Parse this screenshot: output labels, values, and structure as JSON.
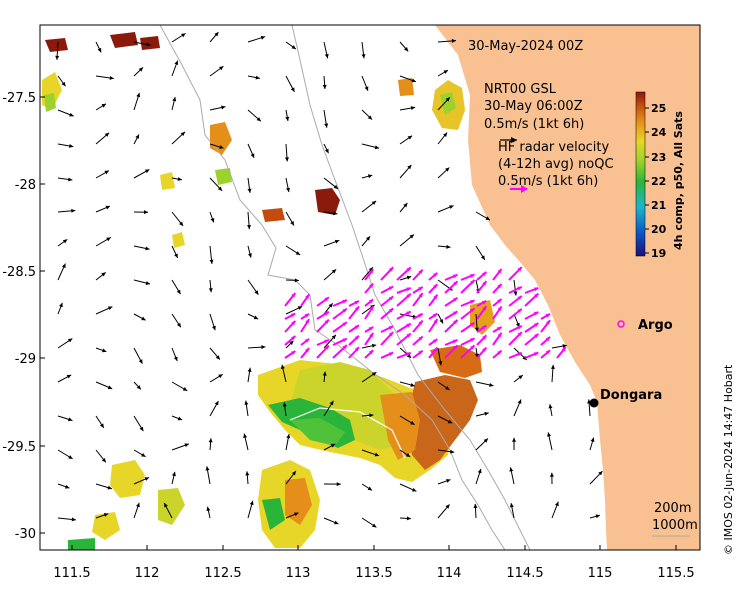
{
  "title_time": "30-May-2024 00Z",
  "model": {
    "name": "NRT00 GSL",
    "time": "30-May 06:00Z",
    "scale_label": "0.5m/s (1kt 6h)"
  },
  "hf_radar": {
    "line1": "HF radar velocity",
    "line2": "(4-12h avg) noQC",
    "scale_label": "0.5m/s (1kt 6h)"
  },
  "markers": {
    "argo": "Argo",
    "town": "Dongara"
  },
  "isobaths": {
    "shallow": "200m",
    "deep": "1000m"
  },
  "credit": "© IMOS 02-Jun-2024 14:47 Hobart",
  "colorbar": {
    "title": "4h comp, p50, All Sats",
    "ticks": [
      "25",
      "24",
      "23",
      "22",
      "21",
      "20",
      "19"
    ]
  },
  "axes": {
    "x_ticks": [
      "111.5",
      "112",
      "112.5",
      "113",
      "113.5",
      "114",
      "114.5",
      "115",
      "115.5"
    ],
    "y_ticks": [
      "-27.5",
      "-28",
      "-28.5",
      "-29",
      "-29.5",
      "-30"
    ]
  },
  "colors": {
    "land": "#f9c192",
    "hf_arrow": "#ff00ff",
    "sst_scale": [
      "#1b0f7a",
      "#0a5cc7",
      "#1eb6c8",
      "#2ab53a",
      "#9dd22c",
      "#e7d628",
      "#e58f1a",
      "#c44b0e",
      "#8a1a0c"
    ]
  }
}
